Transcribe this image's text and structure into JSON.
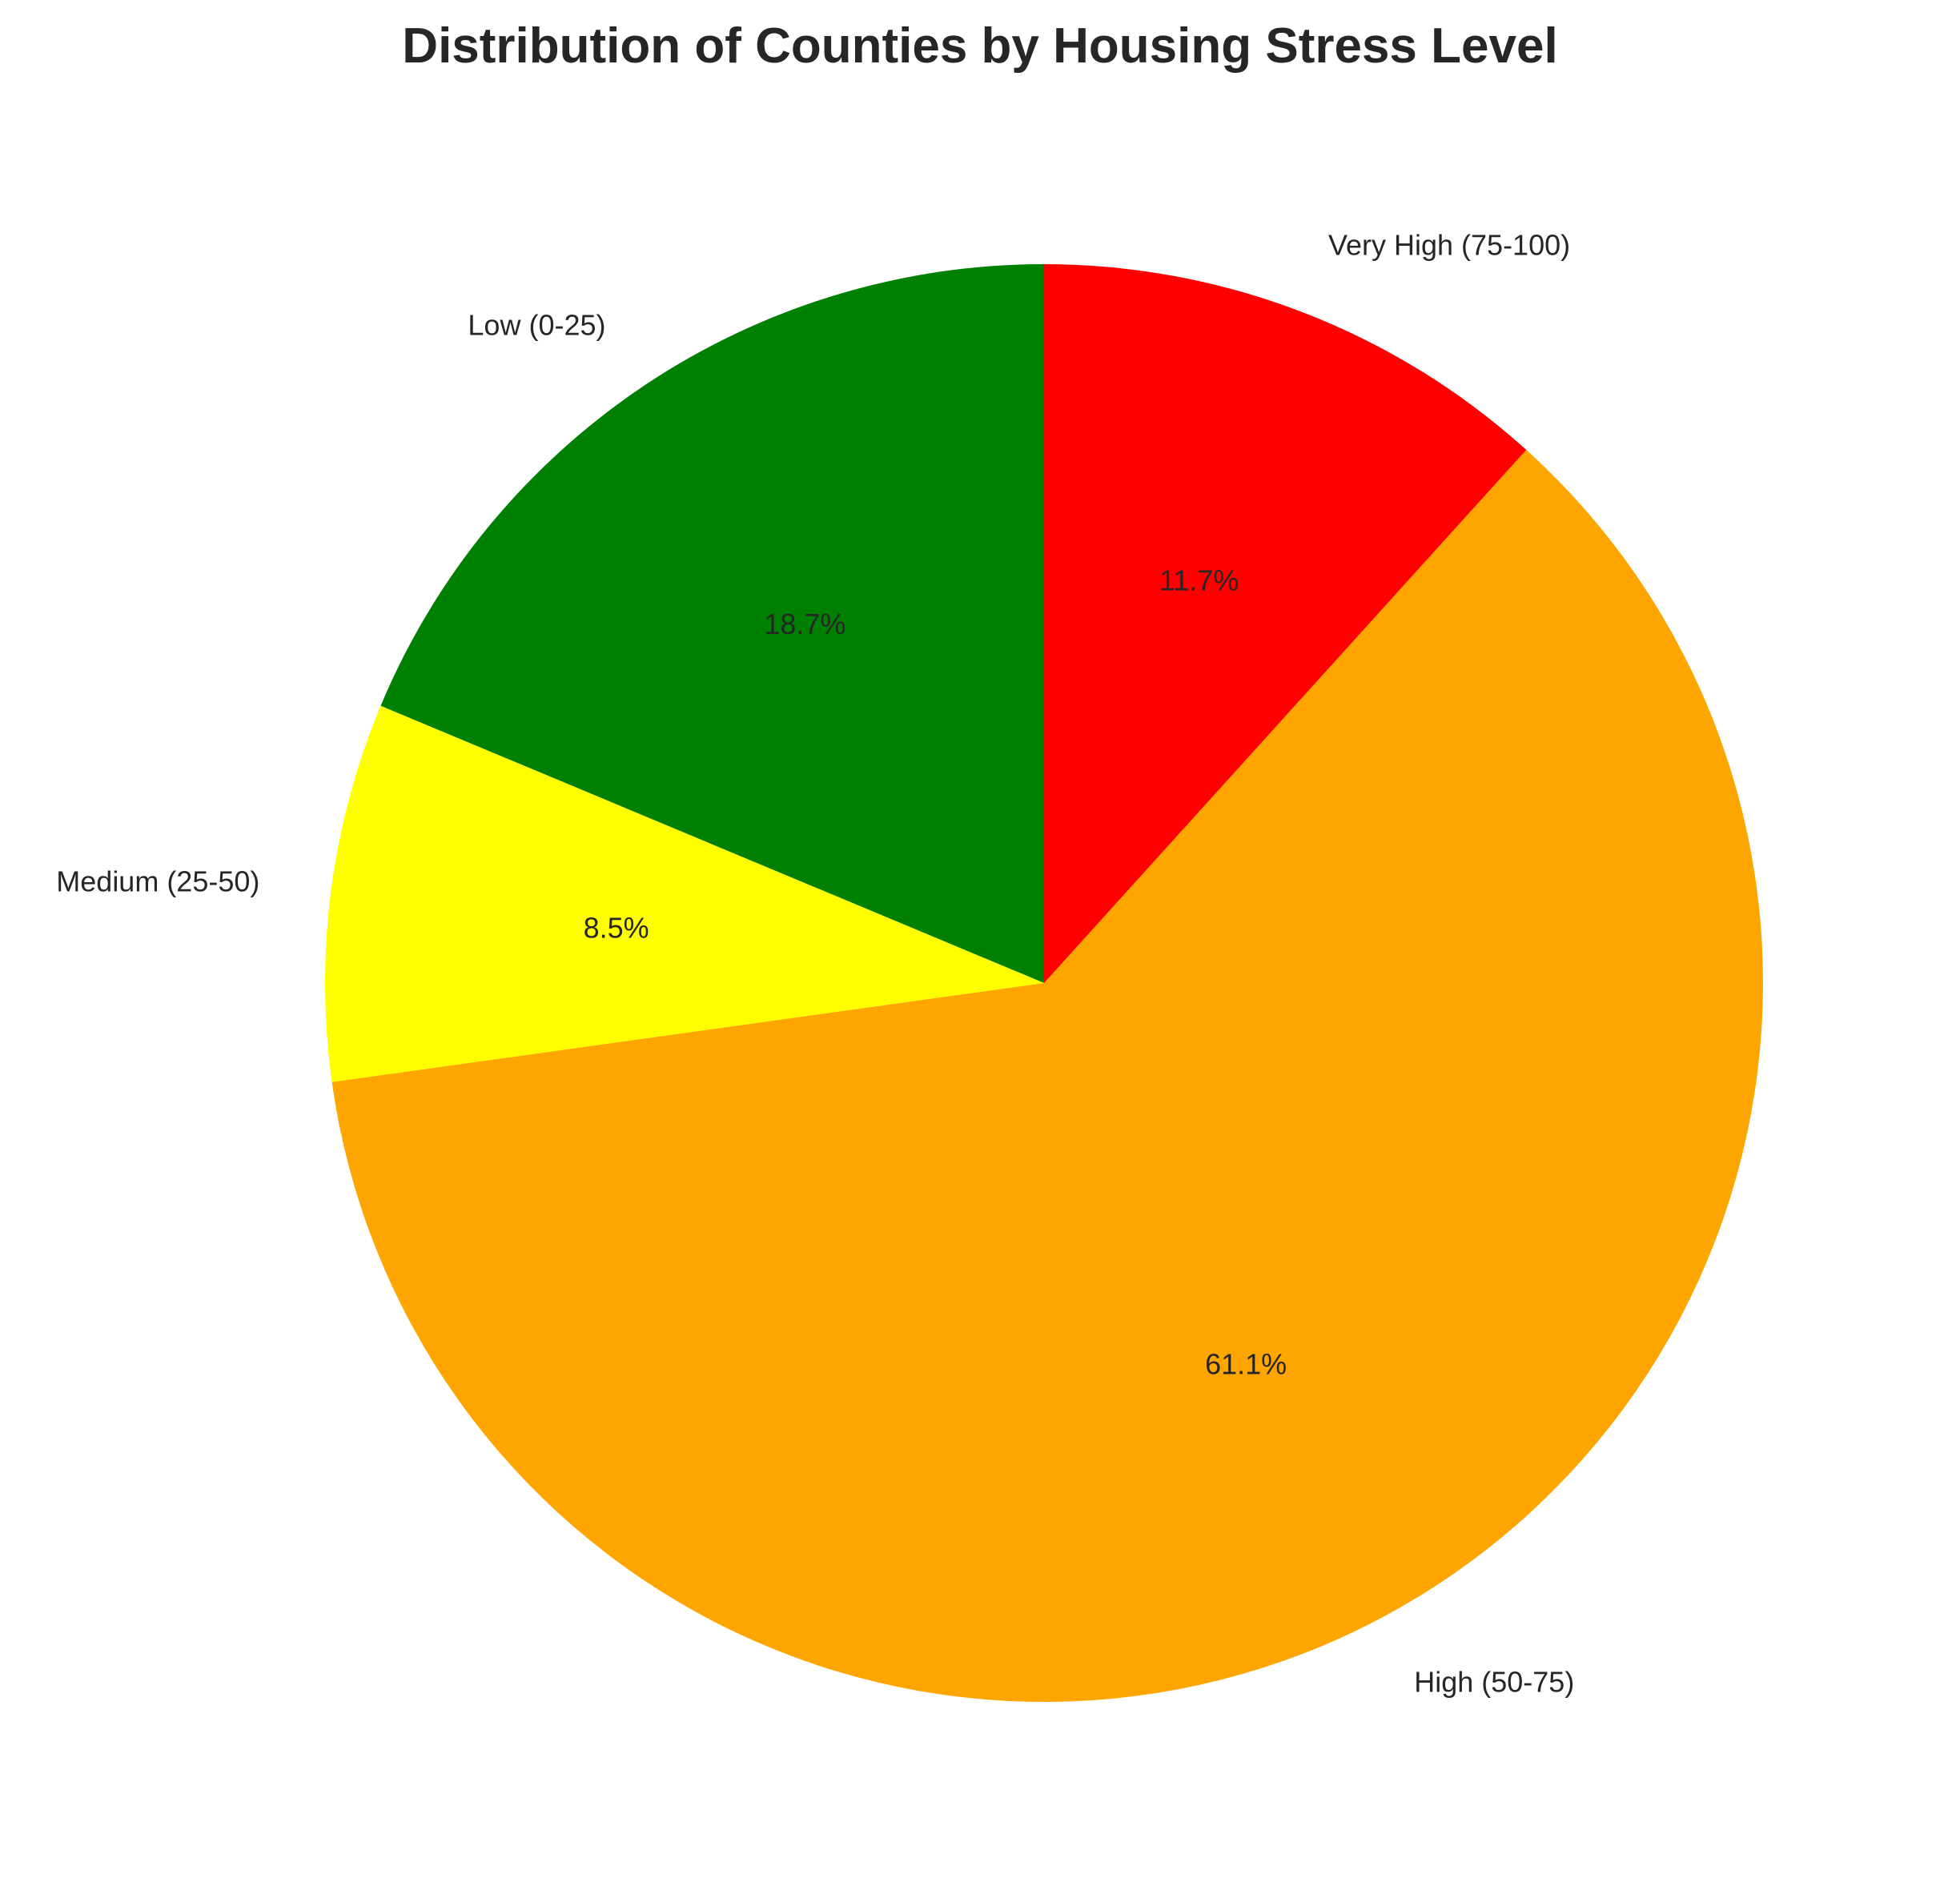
{
  "chart_data": {
    "type": "pie",
    "title": "Distribution of Counties by Housing Stress Level",
    "start_angle_deg": 90,
    "direction": "counterclockwise",
    "slices": [
      {
        "label": "Low (0-25)",
        "value": 18.7,
        "pct_label": "18.7%",
        "color": "#008000"
      },
      {
        "label": "Medium (25-50)",
        "value": 8.5,
        "pct_label": "8.5%",
        "color": "#FFFF00"
      },
      {
        "label": "High (50-75)",
        "value": 61.1,
        "pct_label": "61.1%",
        "color": "#FFA500"
      },
      {
        "label": "Very High (75-100)",
        "value": 11.7,
        "pct_label": "11.7%",
        "color": "#FF0000"
      }
    ]
  }
}
